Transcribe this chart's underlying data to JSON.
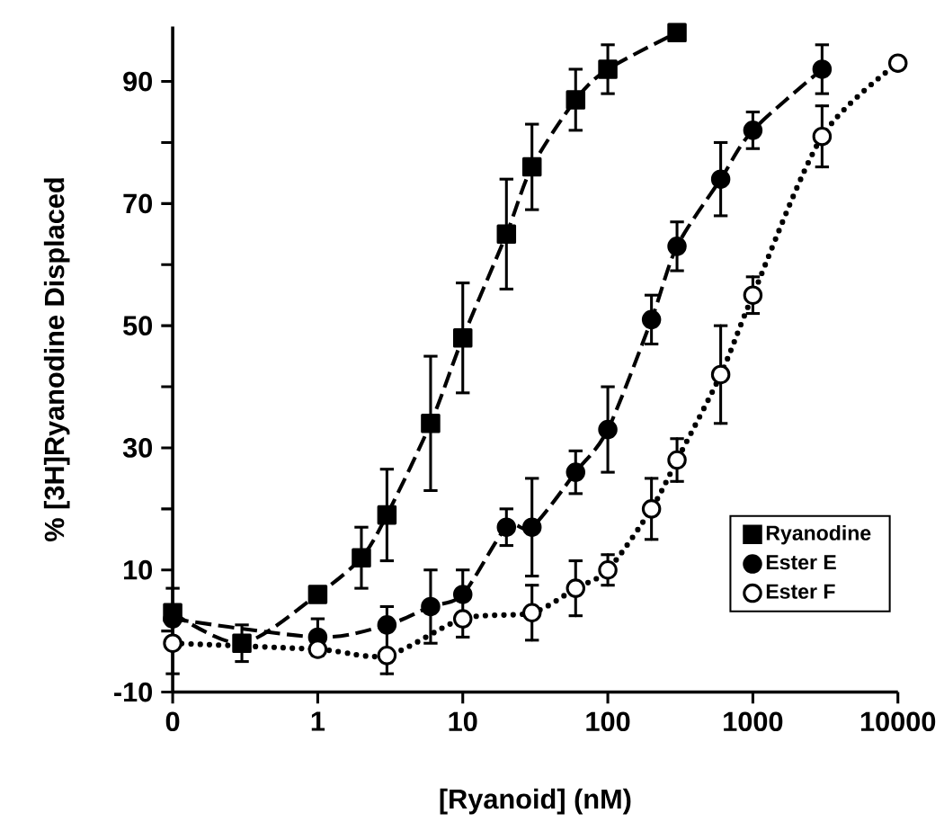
{
  "chart_data": {
    "type": "line",
    "xlabel": "[Ryanoid]  (nM)",
    "ylabel": "%  [3H]Ryanodine  Displaced",
    "log": "x",
    "xlim": [
      0.1,
      10000
    ],
    "ylim": [
      -10,
      99
    ],
    "xticks": [
      {
        "value": 0.1,
        "label": "0"
      },
      1,
      10,
      100,
      1000,
      10000
    ],
    "yticks": [
      -10,
      {
        "value": 0,
        "label": null
      },
      10,
      {
        "value": 20,
        "label": null
      },
      30,
      {
        "value": 40,
        "label": null
      },
      50,
      {
        "value": 60,
        "label": null
      },
      70,
      {
        "value": 80,
        "label": null
      },
      90
    ],
    "legend": "bottom right",
    "grid": false,
    "series": [
      {
        "name": "Ryanodine",
        "color": "#000000",
        "marker": "square",
        "line_style": "dashed",
        "x": [
          0.1,
          0.3,
          1,
          2,
          3,
          6,
          10,
          20,
          30,
          60,
          100,
          300
        ],
        "values": [
          3,
          -2,
          6,
          12,
          19,
          34,
          48,
          65,
          76,
          87,
          92,
          98
        ],
        "errors": [
          null,
          3,
          null,
          5,
          7.5,
          11,
          9,
          9,
          7,
          5,
          4,
          null
        ]
      },
      {
        "name": "Ester E",
        "color": "#000000",
        "marker": "circle",
        "line_style": "dashed",
        "x": [
          0.1,
          1,
          3,
          6,
          10,
          20,
          30,
          60,
          100,
          200,
          300,
          600,
          1000,
          3000
        ],
        "values": [
          2,
          -1,
          1,
          4,
          6,
          17,
          17,
          26,
          33,
          51,
          63,
          74,
          82,
          92
        ],
        "errors": [
          [
            -7,
            7
          ],
          [
            -4,
            2
          ],
          null,
          6,
          [
            -1,
            10
          ],
          3,
          8,
          3.5,
          7,
          4,
          4,
          6,
          3,
          4
        ]
      },
      {
        "name": "Ester F",
        "color": "#ffffff",
        "marker": "circle",
        "line_style": "dotted",
        "x": [
          0.1,
          1,
          3,
          10,
          30,
          60,
          100,
          200,
          300,
          600,
          1000,
          3000,
          10000
        ],
        "values": [
          -2,
          -3,
          -4,
          2,
          3,
          7,
          10,
          20,
          28,
          42,
          55,
          81,
          93
        ],
        "errors": [
          null,
          null,
          [
            -7,
            4
          ],
          null,
          4.5,
          4.5,
          2.5,
          5,
          3.5,
          8,
          3,
          5,
          null
        ]
      }
    ]
  }
}
